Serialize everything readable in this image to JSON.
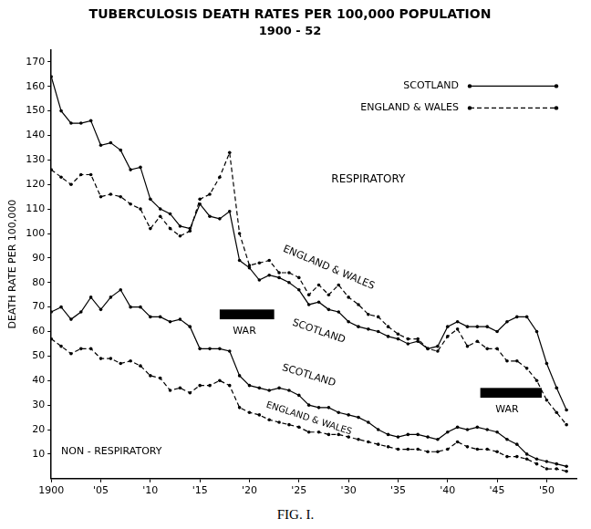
{
  "chart_data": {
    "type": "line",
    "title": "TUBERCULOSIS DEATH RATES PER 100,000 POPULATION",
    "subtitle": "1900 - 52",
    "y_label": "DEATH RATE PER 100,000",
    "caption": "FIG. I.",
    "x": [
      1900,
      1901,
      1902,
      1903,
      1904,
      1905,
      1906,
      1907,
      1908,
      1909,
      1910,
      1911,
      1912,
      1913,
      1914,
      1915,
      1916,
      1917,
      1918,
      1919,
      1920,
      1921,
      1922,
      1923,
      1924,
      1925,
      1926,
      1927,
      1928,
      1929,
      1930,
      1931,
      1932,
      1933,
      1934,
      1935,
      1936,
      1937,
      1938,
      1939,
      1940,
      1941,
      1942,
      1943,
      1944,
      1945,
      1946,
      1947,
      1948,
      1949,
      1950,
      1951,
      1952
    ],
    "series": [
      {
        "name": "SCOTLAND",
        "color": "#000000",
        "line_style": "solid",
        "marker": "circle",
        "values": [
          164,
          150,
          145,
          145,
          146,
          136,
          137,
          134,
          126,
          127,
          114,
          110,
          108,
          103,
          102,
          112,
          107,
          106,
          109,
          89,
          86,
          81,
          83,
          82,
          80,
          77,
          71,
          72,
          69,
          68,
          64,
          62,
          61,
          60,
          58,
          57,
          55,
          56,
          53,
          54,
          62,
          64,
          62,
          62,
          62,
          60,
          64,
          66,
          66,
          60,
          47,
          37,
          28
        ]
      },
      {
        "name": "ENGLAND & WALES",
        "color": "#000000",
        "line_style": "dashed",
        "marker": "circle",
        "values": [
          126,
          123,
          120,
          124,
          124,
          115,
          116,
          115,
          112,
          110,
          102,
          107,
          102,
          99,
          101,
          114,
          116,
          123,
          133,
          100,
          87,
          88,
          89,
          84,
          84,
          82,
          75,
          79,
          75,
          79,
          74,
          71,
          67,
          66,
          62,
          59,
          57,
          57,
          53,
          52,
          58,
          61,
          54,
          56,
          53,
          53,
          48,
          48,
          45,
          40,
          32,
          27,
          22
        ]
      },
      {
        "name": "SCOTLAND",
        "color": "#000000",
        "line_style": "solid",
        "marker": "circle",
        "values": [
          68,
          70,
          65,
          68,
          74,
          69,
          74,
          77,
          70,
          70,
          66,
          66,
          64,
          65,
          62,
          53,
          53,
          53,
          52,
          42,
          38,
          37,
          36,
          37,
          36,
          34,
          30,
          29,
          29,
          27,
          26,
          25,
          23,
          20,
          18,
          17,
          18,
          18,
          17,
          16,
          19,
          21,
          20,
          21,
          20,
          19,
          16,
          14,
          10,
          8,
          7,
          6,
          5
        ]
      },
      {
        "name": "ENGLAND & WALES",
        "color": "#000000",
        "line_style": "dashed",
        "marker": "circle",
        "values": [
          57,
          54,
          51,
          53,
          53,
          49,
          49,
          47,
          48,
          46,
          42,
          41,
          36,
          37,
          35,
          38,
          38,
          40,
          38,
          29,
          27,
          26,
          24,
          23,
          22,
          21,
          19,
          19,
          18,
          18,
          17,
          16,
          15,
          14,
          13,
          12,
          12,
          12,
          11,
          11,
          12,
          15,
          13,
          12,
          12,
          11,
          9,
          9,
          8,
          6,
          4,
          4,
          3
        ]
      }
    ],
    "xlim": [
      1900,
      1953
    ],
    "xticks": [
      1900,
      {
        "value": 1905,
        "label": "'05"
      },
      {
        "value": 1910,
        "label": "'10"
      },
      {
        "value": 1915,
        "label": "'15"
      },
      {
        "value": 1920,
        "label": "'20"
      },
      {
        "value": 1925,
        "label": "'25"
      },
      {
        "value": 1930,
        "label": "'30"
      },
      {
        "value": 1935,
        "label": "'35"
      },
      {
        "value": 1940,
        "label": "'40"
      },
      {
        "value": 1945,
        "label": "'45"
      },
      {
        "value": 1950,
        "label": "'50"
      }
    ],
    "ylim": [
      0,
      175
    ],
    "yticks": [
      10,
      20,
      30,
      40,
      50,
      60,
      70,
      80,
      90,
      100,
      110,
      120,
      130,
      140,
      150,
      160,
      170
    ],
    "annotations": [
      {
        "text": "RESPIRATORY"
      },
      {
        "text": "ENGLAND & WALES"
      },
      {
        "text": "SCOTLAND"
      },
      {
        "text": "SCOTLAND"
      },
      {
        "text": "ENGLAND & WALES"
      },
      {
        "text": "NON - RESPIRATORY"
      },
      {
        "text": "WAR"
      },
      {
        "text": "WAR"
      }
    ],
    "grid": false,
    "legend": "upper right"
  }
}
